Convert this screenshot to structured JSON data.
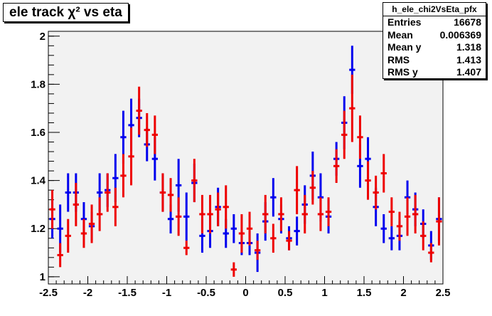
{
  "title": "ele track χ² vs eta",
  "stats": {
    "name": "h_ele_chi2VsEta_pfx",
    "rows": [
      {
        "label": "Entries",
        "value": "16678"
      },
      {
        "label": "Mean",
        "value": "0.006369"
      },
      {
        "label": "Mean y",
        "value": "1.318"
      },
      {
        "label": "RMS",
        "value": "1.413"
      },
      {
        "label": "RMS y",
        "value": "1.407"
      }
    ]
  },
  "chart_data": {
    "type": "scatter",
    "title": "ele track χ² vs eta",
    "xlim": [
      -2.5,
      2.5
    ],
    "ylim": [
      0.97,
      2.02
    ],
    "x_ticks": [
      -2.5,
      -2,
      -1.5,
      -1,
      -0.5,
      0,
      0.5,
      1,
      1.5,
      2,
      2.5
    ],
    "x_tick_labels": [
      "-2.5",
      "-2",
      "-1.5",
      "-1",
      "-0.5",
      "0",
      "0.5",
      "1",
      "1.5",
      "2",
      "2.5"
    ],
    "y_ticks": [
      1,
      1.2,
      1.4,
      1.6,
      1.8,
      2
    ],
    "y_tick_labels": [
      "1",
      "1.2",
      "1.4",
      "1.6",
      "1.8",
      "2"
    ],
    "grid": false,
    "bin_width": 0.1,
    "series": [
      {
        "color": "#0000ee",
        "points": [
          {
            "x": -2.45,
            "y": 1.24,
            "err": 0.08
          },
          {
            "x": -2.35,
            "y": 1.2,
            "err": 0.1
          },
          {
            "x": -2.25,
            "y": 1.35,
            "err": 0.08
          },
          {
            "x": -2.15,
            "y": 1.35,
            "err": 0.08
          },
          {
            "x": -2.05,
            "y": 1.24,
            "err": 0.07
          },
          {
            "x": -1.95,
            "y": 1.21,
            "err": 0.06
          },
          {
            "x": -1.85,
            "y": 1.35,
            "err": 0.08
          },
          {
            "x": -1.75,
            "y": 1.36,
            "err": 0.07
          },
          {
            "x": -1.65,
            "y": 1.41,
            "err": 0.1
          },
          {
            "x": -1.55,
            "y": 1.58,
            "err": 0.11
          },
          {
            "x": -1.45,
            "y": 1.63,
            "err": 0.11
          },
          {
            "x": -1.35,
            "y": 1.66,
            "err": 0.08
          },
          {
            "x": -1.25,
            "y": 1.55,
            "err": 0.07
          },
          {
            "x": -1.15,
            "y": 1.49,
            "err": 0.09
          },
          {
            "x": -1.05,
            "y": 1.35,
            "err": 0.08
          },
          {
            "x": -0.95,
            "y": 1.24,
            "err": 0.06
          },
          {
            "x": -0.85,
            "y": 1.38,
            "err": 0.11
          },
          {
            "x": -0.75,
            "y": 1.25,
            "err": 0.1
          },
          {
            "x": -0.65,
            "y": 1.39,
            "err": 0.08
          },
          {
            "x": -0.55,
            "y": 1.17,
            "err": 0.07
          },
          {
            "x": -0.45,
            "y": 1.19,
            "err": 0.07
          },
          {
            "x": -0.35,
            "y": 1.29,
            "err": 0.08
          },
          {
            "x": -0.25,
            "y": 1.18,
            "err": 0.06
          },
          {
            "x": -0.15,
            "y": 1.2,
            "err": 0.06
          },
          {
            "x": -0.05,
            "y": 1.14,
            "err": 0.05
          },
          {
            "x": 0.05,
            "y": 1.14,
            "err": 0.05
          },
          {
            "x": 0.15,
            "y": 1.1,
            "err": 0.08
          },
          {
            "x": 0.25,
            "y": 1.23,
            "err": 0.08
          },
          {
            "x": 0.35,
            "y": 1.33,
            "err": 0.08
          },
          {
            "x": 0.45,
            "y": 1.24,
            "err": 0.06
          },
          {
            "x": 0.55,
            "y": 1.16,
            "err": 0.05
          },
          {
            "x": 0.65,
            "y": 1.19,
            "err": 0.06
          },
          {
            "x": 0.75,
            "y": 1.3,
            "err": 0.08
          },
          {
            "x": 0.85,
            "y": 1.42,
            "err": 0.1
          },
          {
            "x": 0.95,
            "y": 1.33,
            "err": 0.1
          },
          {
            "x": 1.05,
            "y": 1.25,
            "err": 0.07
          },
          {
            "x": 1.15,
            "y": 1.49,
            "err": 0.07
          },
          {
            "x": 1.25,
            "y": 1.64,
            "err": 0.11
          },
          {
            "x": 1.35,
            "y": 1.86,
            "err": 0.1
          },
          {
            "x": 1.45,
            "y": 1.46,
            "err": 0.09
          },
          {
            "x": 1.55,
            "y": 1.49,
            "err": 0.09
          },
          {
            "x": 1.65,
            "y": 1.29,
            "err": 0.08
          },
          {
            "x": 1.75,
            "y": 1.2,
            "err": 0.06
          },
          {
            "x": 1.85,
            "y": 1.16,
            "err": 0.05
          },
          {
            "x": 1.95,
            "y": 1.17,
            "err": 0.06
          },
          {
            "x": 2.05,
            "y": 1.33,
            "err": 0.07
          },
          {
            "x": 2.15,
            "y": 1.28,
            "err": 0.07
          },
          {
            "x": 2.25,
            "y": 1.22,
            "err": 0.06
          },
          {
            "x": 2.35,
            "y": 1.13,
            "err": 0.06
          },
          {
            "x": 2.45,
            "y": 1.24,
            "err": 0.09
          }
        ]
      },
      {
        "color": "#ee0000",
        "points": [
          {
            "x": -2.45,
            "y": 1.28,
            "err": 0.08
          },
          {
            "x": -2.35,
            "y": 1.09,
            "err": 0.05
          },
          {
            "x": -2.25,
            "y": 1.17,
            "err": 0.07
          },
          {
            "x": -2.15,
            "y": 1.3,
            "err": 0.09
          },
          {
            "x": -2.05,
            "y": 1.18,
            "err": 0.06
          },
          {
            "x": -1.95,
            "y": 1.22,
            "err": 0.08
          },
          {
            "x": -1.85,
            "y": 1.26,
            "err": 0.07
          },
          {
            "x": -1.75,
            "y": 1.35,
            "err": 0.08
          },
          {
            "x": -1.65,
            "y": 1.29,
            "err": 0.08
          },
          {
            "x": -1.55,
            "y": 1.42,
            "err": 0.09
          },
          {
            "x": -1.45,
            "y": 1.5,
            "err": 0.12
          },
          {
            "x": -1.35,
            "y": 1.69,
            "err": 0.1
          },
          {
            "x": -1.25,
            "y": 1.61,
            "err": 0.07
          },
          {
            "x": -1.15,
            "y": 1.59,
            "err": 0.08
          },
          {
            "x": -1.05,
            "y": 1.35,
            "err": 0.08
          },
          {
            "x": -0.95,
            "y": 1.34,
            "err": 0.07
          },
          {
            "x": -0.85,
            "y": 1.25,
            "err": 0.08
          },
          {
            "x": -0.75,
            "y": 1.12,
            "err": 0.03
          },
          {
            "x": -0.65,
            "y": 1.4,
            "err": 0.09
          },
          {
            "x": -0.55,
            "y": 1.26,
            "err": 0.08
          },
          {
            "x": -0.45,
            "y": 1.26,
            "err": 0.08
          },
          {
            "x": -0.35,
            "y": 1.28,
            "err": 0.07
          },
          {
            "x": -0.25,
            "y": 1.29,
            "err": 0.09
          },
          {
            "x": -0.15,
            "y": 1.03,
            "err": 0.03
          },
          {
            "x": -0.05,
            "y": 1.18,
            "err": 0.08
          },
          {
            "x": 0.05,
            "y": 1.2,
            "err": 0.07
          },
          {
            "x": 0.15,
            "y": 1.11,
            "err": 0.04
          },
          {
            "x": 0.25,
            "y": 1.26,
            "err": 0.08
          },
          {
            "x": 0.35,
            "y": 1.16,
            "err": 0.06
          },
          {
            "x": 0.45,
            "y": 1.26,
            "err": 0.07
          },
          {
            "x": 0.55,
            "y": 1.15,
            "err": 0.04
          },
          {
            "x": 0.65,
            "y": 1.36,
            "err": 0.1
          },
          {
            "x": 0.75,
            "y": 1.26,
            "err": 0.08
          },
          {
            "x": 0.85,
            "y": 1.37,
            "err": 0.07
          },
          {
            "x": 0.95,
            "y": 1.26,
            "err": 0.07
          },
          {
            "x": 1.05,
            "y": 1.27,
            "err": 0.06
          },
          {
            "x": 1.15,
            "y": 1.46,
            "err": 0.07
          },
          {
            "x": 1.25,
            "y": 1.59,
            "err": 0.1
          },
          {
            "x": 1.35,
            "y": 1.7,
            "err": 0.14
          },
          {
            "x": 1.45,
            "y": 1.58,
            "err": 0.09
          },
          {
            "x": 1.55,
            "y": 1.4,
            "err": 0.08
          },
          {
            "x": 1.65,
            "y": 1.35,
            "err": 0.07
          },
          {
            "x": 1.75,
            "y": 1.43,
            "err": 0.08
          },
          {
            "x": 1.85,
            "y": 1.27,
            "err": 0.06
          },
          {
            "x": 1.95,
            "y": 1.21,
            "err": 0.06
          },
          {
            "x": 2.05,
            "y": 1.25,
            "err": 0.08
          },
          {
            "x": 2.15,
            "y": 1.26,
            "err": 0.08
          },
          {
            "x": 2.25,
            "y": 1.17,
            "err": 0.06
          },
          {
            "x": 2.35,
            "y": 1.1,
            "err": 0.04
          },
          {
            "x": 2.45,
            "y": 1.23,
            "err": 0.1
          }
        ]
      }
    ]
  }
}
